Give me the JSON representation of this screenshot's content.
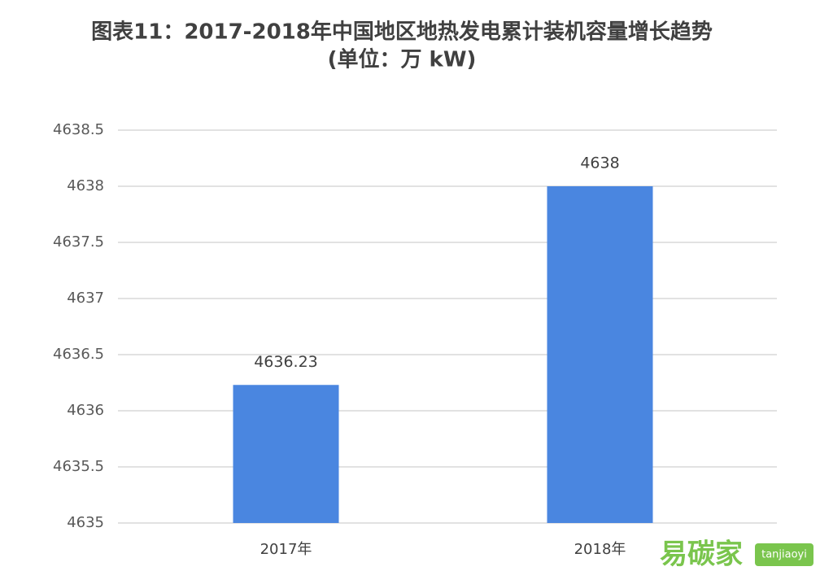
{
  "chart_data": {
    "type": "bar",
    "title": "图表11：2017-2018年中国地区地热发电累计装机容量增长趋势",
    "subtitle": "(单位：万 kW)",
    "categories": [
      "2017年",
      "2018年"
    ],
    "values": [
      4636.23,
      4638
    ],
    "color": "#4a86e0",
    "ylim": [
      4635,
      4638.5
    ],
    "yticks": [
      4635,
      4635.5,
      4636,
      4636.5,
      4637,
      4637.5,
      4638,
      4638.5
    ],
    "grid": true,
    "watermark": "易碳家",
    "watermark_url": "tanjiaoyi"
  }
}
